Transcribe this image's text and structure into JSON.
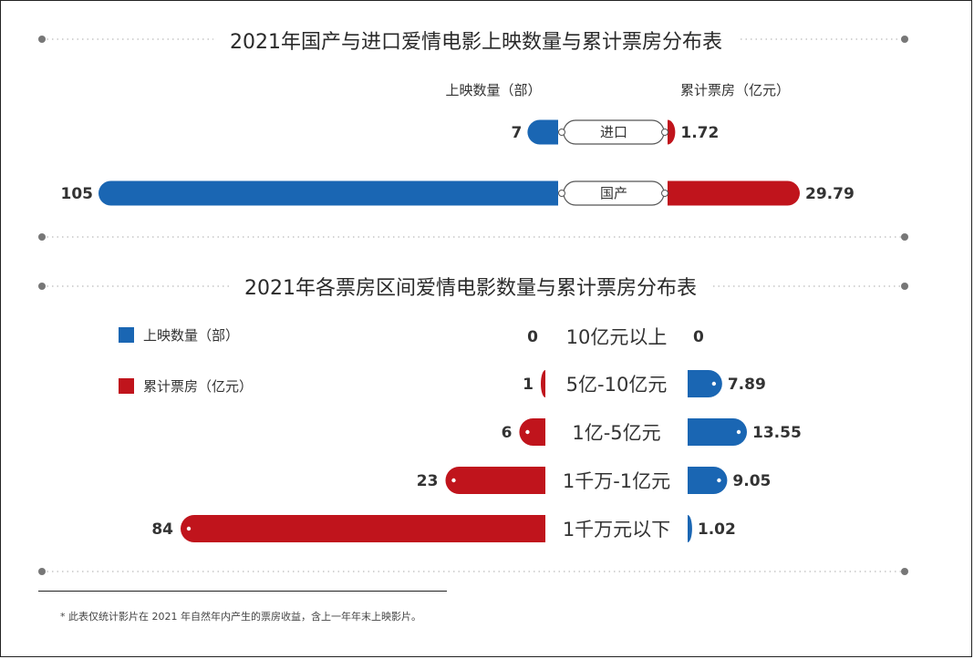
{
  "chart_data": [
    {
      "type": "bar",
      "orientation": "horizontal-diverging",
      "title": "2021年国产与进口爱情电影上映数量与累计票房分布表",
      "left_header": "上映数量（部）",
      "right_header": "累计票房（亿元）",
      "categories": [
        "进口",
        "国产"
      ],
      "series": [
        {
          "name": "上映数量（部）",
          "side": "left",
          "color": "#1a66b3",
          "values": [
            7,
            105
          ],
          "labels": [
            "7",
            "105"
          ]
        },
        {
          "name": "累计票房（亿元）",
          "side": "right",
          "color": "#c0141c",
          "values": [
            1.72,
            29.79
          ],
          "labels": [
            "1.72",
            "29.79"
          ]
        }
      ]
    },
    {
      "type": "bar",
      "orientation": "horizontal-diverging",
      "title": "2021年各票房区间爱情电影数量与累计票房分布表",
      "legend_position": "top-left",
      "categories": [
        "10亿元以上",
        "5亿-10亿元",
        "1亿-5亿元",
        "1千万-1亿元",
        "1千万元以下"
      ],
      "series": [
        {
          "name": "上映数量（部）",
          "side": "right",
          "color": "#1a66b3",
          "values": [
            0,
            7.89,
            13.55,
            9.05,
            1.02
          ],
          "labels": [
            "0",
            "7.89",
            "13.55",
            "9.05",
            "1.02"
          ]
        },
        {
          "name": "累计票房（亿元）",
          "side": "left",
          "color": "#c0141c",
          "values": [
            0,
            1,
            6,
            23,
            84
          ],
          "labels": [
            "0",
            "1",
            "6",
            "23",
            "84"
          ]
        }
      ]
    }
  ],
  "legend": {
    "items": [
      {
        "label": "上映数量（部）",
        "color": "#1a66b3"
      },
      {
        "label": "累计票房（亿元）",
        "color": "#c0141c"
      }
    ]
  },
  "footnote": "* 此表仅统计影片在 2021 年自然年内产生的票房收益，含上一年年末上映影片。"
}
